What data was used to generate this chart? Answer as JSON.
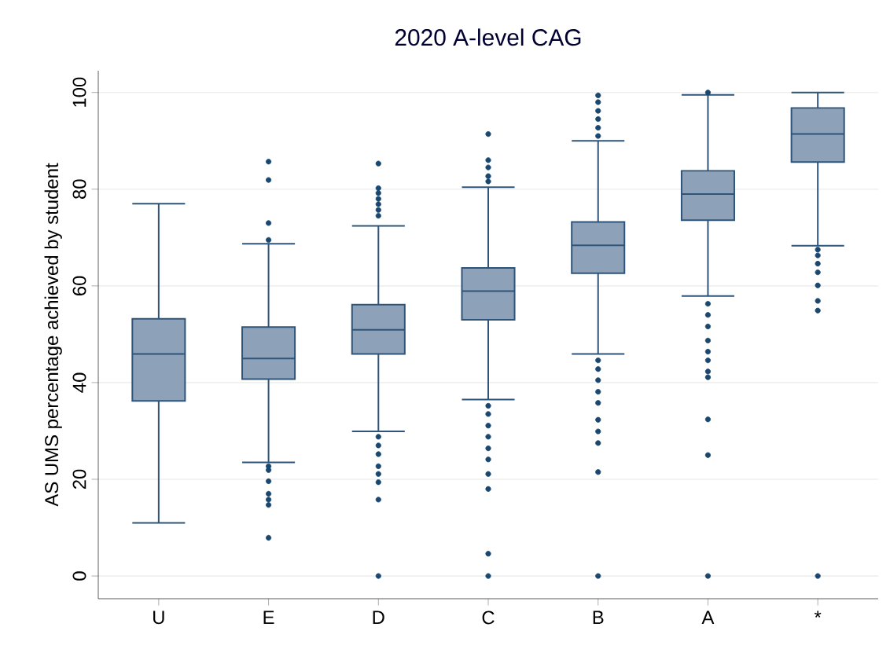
{
  "chart_data": {
    "type": "box",
    "title": "2020 A-level CAG",
    "ylabel": "AS UMS percentage achieved by student",
    "categories": [
      "U",
      "E",
      "D",
      "C",
      "B",
      "A",
      "*"
    ],
    "color": "#8da2b8",
    "boxes": [
      {
        "low": 11,
        "q1": 36.2,
        "median": 45.9,
        "q3": 53.2,
        "high": 77
      },
      {
        "low": 23.5,
        "q1": 40.7,
        "median": 45,
        "q3": 51.5,
        "high": 68.7,
        "outliers": [
          85.7,
          81.9,
          73,
          69.5,
          22.7,
          21.9,
          19.6,
          17,
          15.8,
          14.7,
          7.9
        ]
      },
      {
        "low": 29.9,
        "q1": 45.9,
        "median": 50.9,
        "q3": 56.1,
        "high": 72.4,
        "outliers": [
          85.3,
          80.2,
          79.2,
          78,
          76.9,
          75.7,
          74.5,
          28.8,
          27,
          25.2,
          22.7,
          21.1,
          19.4,
          15.8,
          0
        ]
      },
      {
        "low": 36.5,
        "q1": 53,
        "median": 58.9,
        "q3": 63.7,
        "high": 80.4,
        "outliers": [
          91.4,
          86,
          84.5,
          82.7,
          81.6,
          35.2,
          33.5,
          31.1,
          28.8,
          26.4,
          24.1,
          21.1,
          18,
          4.6,
          0
        ]
      },
      {
        "low": 45.9,
        "q1": 62.6,
        "median": 68.4,
        "q3": 73.2,
        "high": 90,
        "outliers": [
          99.4,
          98,
          96.2,
          94.5,
          92.7,
          91,
          44.6,
          42.8,
          40.5,
          38.1,
          35.8,
          32.3,
          29.9,
          27.5,
          21.5,
          0
        ]
      },
      {
        "low": 57.9,
        "q1": 73.6,
        "median": 79,
        "q3": 83.8,
        "high": 99.5,
        "outliers": [
          100,
          56.3,
          54,
          51.6,
          48.7,
          46.4,
          44.6,
          42.3,
          41.1,
          32.4,
          25,
          0
        ]
      },
      {
        "low": 68.3,
        "q1": 85.6,
        "median": 91.4,
        "q3": 96.8,
        "high": 100,
        "outliers": [
          67.5,
          66.3,
          64.6,
          62.8,
          60.1,
          56.9,
          54.9,
          0
        ]
      }
    ],
    "ylim": [
      -4.7,
      104.5
    ],
    "yticks": [
      0,
      20,
      40,
      60,
      80,
      100
    ],
    "grid": "y"
  }
}
